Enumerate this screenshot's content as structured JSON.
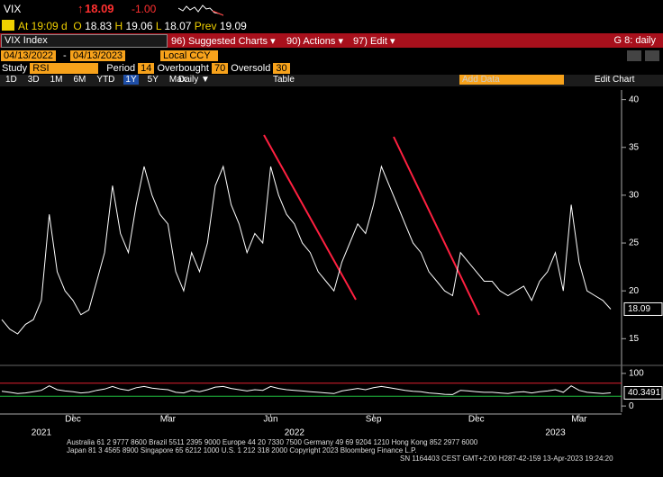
{
  "header": {
    "ticker": "VIX",
    "arrow": "↑",
    "last": "18.09",
    "change": "-1.00",
    "time": "At 19:09 d",
    "open_label": "O",
    "open": "18.83",
    "high_label": "H",
    "high": "19.06",
    "low_label": "L",
    "low": "18.07",
    "prev_label": "Prev",
    "prev": "19.09"
  },
  "toolbar": {
    "security": "VIX Index",
    "menus": [
      "96) Suggested Charts ▾",
      "90) Actions ▾",
      "97) Edit ▾"
    ],
    "page": "G 8: daily"
  },
  "range": {
    "start": "04/13/2022",
    "separator": "-",
    "end": "04/13/2023",
    "currency": "Local CCY"
  },
  "study": {
    "label": "Study",
    "name": "RSI",
    "period_label": "Period",
    "period": 14,
    "overbought_label": "Overbought",
    "overbought": 70,
    "oversold_label": "Oversold",
    "oversold": 30
  },
  "periods": [
    "1D",
    "3D",
    "1M",
    "6M",
    "YTD",
    "1Y",
    "5Y",
    "Max"
  ],
  "frequency": "Daily ▼",
  "table": "Table",
  "add_data": "Add Data",
  "edit_chart": "Edit Chart",
  "chart_data": [
    {
      "type": "line",
      "categories": [
        null,
        null,
        null,
        null,
        null,
        null,
        null,
        null,
        null,
        "Dec",
        null,
        null,
        null,
        null,
        null,
        null,
        null,
        null,
        null,
        null,
        null,
        "Mar",
        null,
        null,
        null,
        null,
        null,
        null,
        null,
        null,
        null,
        null,
        null,
        null,
        "Jun",
        null,
        null,
        null,
        null,
        null,
        null,
        null,
        null,
        null,
        null,
        null,
        null,
        "Sep",
        null,
        null,
        null,
        null,
        null,
        null,
        null,
        null,
        null,
        null,
        null,
        null,
        "Dec",
        null,
        null,
        null,
        null,
        null,
        null,
        null,
        null,
        null,
        null,
        null,
        null,
        "Mar",
        null,
        null,
        null,
        null
      ],
      "year_labels": [
        null,
        null,
        null,
        null,
        null,
        "2021",
        null,
        null,
        null,
        null,
        null,
        null,
        null,
        null,
        null,
        null,
        null,
        null,
        null,
        null,
        null,
        null,
        null,
        null,
        null,
        null,
        null,
        null,
        null,
        null,
        null,
        null,
        null,
        null,
        null,
        null,
        null,
        "2022",
        null,
        null,
        null,
        null,
        null,
        null,
        null,
        null,
        null,
        null,
        null,
        null,
        null,
        null,
        null,
        null,
        null,
        null,
        null,
        null,
        null,
        null,
        null,
        null,
        null,
        null,
        null,
        null,
        null,
        null,
        null,
        null,
        "2023",
        null,
        null,
        null,
        null,
        null,
        null,
        null
      ],
      "series": [
        {
          "color": "#ffffff",
          "values": [
            17,
            16,
            15.5,
            16.5,
            17,
            19,
            28,
            22,
            20,
            19,
            17.5,
            18,
            21,
            24,
            31,
            26,
            24,
            29,
            33,
            30,
            28,
            27,
            22,
            20,
            24,
            22,
            25,
            31,
            33,
            29,
            27,
            24,
            26,
            25,
            33,
            30,
            28,
            27,
            25,
            24,
            22,
            21,
            20,
            23,
            25,
            27,
            26,
            29,
            33,
            31,
            29,
            27,
            25,
            24,
            22,
            21,
            20,
            19.5,
            24,
            23,
            22,
            21,
            21,
            20,
            19.5,
            20,
            20.5,
            19,
            21,
            22,
            24,
            20,
            29,
            23,
            20,
            19.5,
            19,
            18.09
          ]
        }
      ],
      "ylim": [
        12.3,
        41
      ],
      "yticks": [
        15,
        20,
        25,
        30,
        35,
        40
      ],
      "grid": false
    },
    {
      "type": "line",
      "series": [
        {
          "color": "#ffffff",
          "values": [
            45,
            42,
            38,
            40,
            44,
            48,
            62,
            50,
            46,
            44,
            40,
            42,
            48,
            52,
            60,
            52,
            48,
            56,
            60,
            55,
            52,
            50,
            42,
            40,
            48,
            44,
            50,
            58,
            60,
            54,
            50,
            46,
            50,
            48,
            60,
            54,
            50,
            48,
            46,
            44,
            42,
            40,
            38,
            46,
            50,
            54,
            50,
            56,
            60,
            56,
            52,
            48,
            45,
            44,
            40,
            38,
            36,
            35,
            48,
            46,
            44,
            42,
            42,
            40,
            38,
            42,
            44,
            40,
            44,
            46,
            50,
            42,
            62,
            48,
            42,
            40,
            38,
            40.3491
          ]
        }
      ],
      "ylim": [
        -19,
        119
      ],
      "yticks": [
        0,
        100
      ],
      "grid": false
    }
  ],
  "footer": [
    "Australia 61 2 9777 8600 Brazil 5511 2395 9000 Europe 44 20 7330 7500 Germany 49 69 9204 1210 Hong Kong 852 2977 6000",
    "Japan 81 3 4565 8900      Singapore 65 6212 1000      U.S. 1 212 318 2000          Copyright 2023 Bloomberg Finance L.P.",
    "SN 1164403 CEST GMT+2:00 H287-42-159 13-Apr-2023 19:24:20"
  ]
}
